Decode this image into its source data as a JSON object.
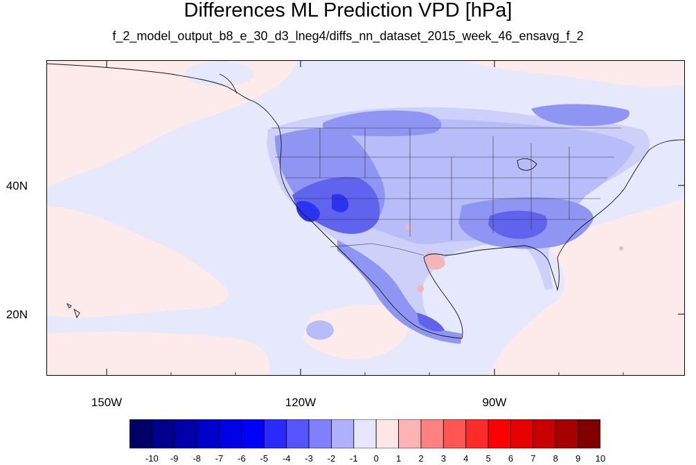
{
  "title": "Differences ML Prediction VPD [hPa]",
  "subtitle": "f_2_model_output_b8_e_30_d3_lneg4/diffs_nn_dataset_2015_week_46_ensavg_f_2",
  "map": {
    "projection": "cylindrical-equidistant",
    "lon_range": [
      -159.3,
      -60.7
    ],
    "lat_range": [
      11,
      59.3
    ],
    "lat_labels": [
      "40N",
      "20N"
    ],
    "lat_values": [
      40,
      20
    ],
    "lon_labels": [
      "150W",
      "120W",
      "90W"
    ],
    "lon_values": [
      -150,
      -120,
      -90
    ]
  },
  "colorbar": {
    "labels": [
      "-10",
      "-9",
      "-8",
      "-7",
      "-6",
      "-5",
      "-4",
      "-3",
      "-2",
      "-1",
      "0",
      "1",
      "2",
      "3",
      "4",
      "5",
      "6",
      "7",
      "8",
      "9",
      "10"
    ],
    "colors": [
      "#000066",
      "#00008c",
      "#0000aa",
      "#0000cc",
      "#0000e6",
      "#0000ff",
      "#2a2aff",
      "#5555ff",
      "#8080ff",
      "#b0b0ff",
      "#e6e6ff",
      "#ffe6e6",
      "#ffb3b3",
      "#ff8080",
      "#ff5555",
      "#ff2a2a",
      "#ff0000",
      "#e60000",
      "#c80000",
      "#a60000",
      "#800000"
    ]
  },
  "colors": {
    "ocean_background": "#e6e8fb",
    "ocean_pink": "#fdeaea",
    "land_light": "#b8bcf8",
    "land_mid": "#8f95f2",
    "land_dark": "#5f63ee",
    "land_darkest": "#2c33f0",
    "positive_anomaly": "#f4b5b8"
  }
}
